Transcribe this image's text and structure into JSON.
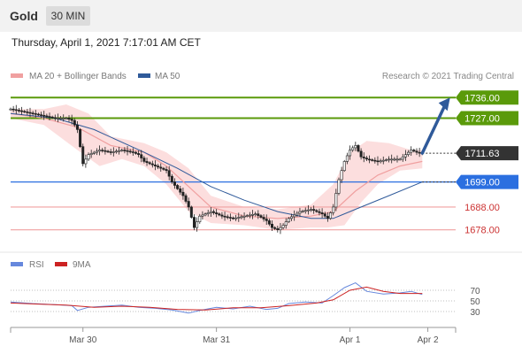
{
  "header": {
    "instrument": "Gold",
    "timeframe": "30 MIN",
    "datetime": "Thursday, April 1, 2021 7:17:01 AM CET"
  },
  "legend": {
    "ma20": "MA 20 + Bollinger Bands",
    "ma50": "MA 50",
    "credit": "Research © 2021 Trading Central",
    "rsi": "RSI",
    "ma9": "9MA"
  },
  "colors": {
    "resistance": "#5a9a0a",
    "support_blue": "#2b6fe0",
    "support_red": "#f0a0a0",
    "price_tag": "#333333",
    "ma20": "#f0a0a0",
    "ma50": "#2f5a9a",
    "band": "#fbd8d8",
    "arrow": "#2f5a9a",
    "rsi": "#6688dd",
    "rsi_ma": "#cc2222"
  },
  "chart_data": [
    {
      "type": "candlestick",
      "title": "Gold",
      "x_tick_labels": [
        "Mar 30",
        "Mar 31",
        "Apr 1",
        "Apr 2"
      ],
      "levels": [
        {
          "value": 1736.0,
          "label": "1736.00",
          "kind": "resistance"
        },
        {
          "value": 1727.0,
          "label": "1727.00",
          "kind": "resistance"
        },
        {
          "value": 1711.63,
          "label": "1711.63",
          "kind": "last-price"
        },
        {
          "value": 1699.0,
          "label": "1699.00",
          "kind": "pivot"
        },
        {
          "value": 1688.0,
          "label": "1688.00",
          "kind": "support"
        },
        {
          "value": 1678.0,
          "label": "1678.00",
          "kind": "support"
        }
      ],
      "price_path": [
        {
          "x": 0,
          "y": 1731
        },
        {
          "x": 4,
          "y": 1730
        },
        {
          "x": 8,
          "y": 1729
        },
        {
          "x": 12,
          "y": 1728
        },
        {
          "x": 16,
          "y": 1727
        },
        {
          "x": 20,
          "y": 1727
        },
        {
          "x": 22,
          "y": 1726
        },
        {
          "x": 24,
          "y": 1722
        },
        {
          "x": 26,
          "y": 1707
        },
        {
          "x": 28,
          "y": 1711
        },
        {
          "x": 32,
          "y": 1713
        },
        {
          "x": 36,
          "y": 1712
        },
        {
          "x": 40,
          "y": 1713
        },
        {
          "x": 44,
          "y": 1712
        },
        {
          "x": 46,
          "y": 1711
        },
        {
          "x": 48,
          "y": 1708
        },
        {
          "x": 52,
          "y": 1706
        },
        {
          "x": 56,
          "y": 1704
        },
        {
          "x": 58,
          "y": 1699
        },
        {
          "x": 62,
          "y": 1693
        },
        {
          "x": 64,
          "y": 1688
        },
        {
          "x": 66,
          "y": 1679
        },
        {
          "x": 68,
          "y": 1684
        },
        {
          "x": 72,
          "y": 1686
        },
        {
          "x": 76,
          "y": 1684
        },
        {
          "x": 80,
          "y": 1683
        },
        {
          "x": 84,
          "y": 1684
        },
        {
          "x": 88,
          "y": 1685
        },
        {
          "x": 92,
          "y": 1682
        },
        {
          "x": 94,
          "y": 1679
        },
        {
          "x": 96,
          "y": 1678
        },
        {
          "x": 98,
          "y": 1680
        },
        {
          "x": 100,
          "y": 1683
        },
        {
          "x": 104,
          "y": 1686
        },
        {
          "x": 108,
          "y": 1687
        },
        {
          "x": 112,
          "y": 1685
        },
        {
          "x": 114,
          "y": 1683
        },
        {
          "x": 116,
          "y": 1688
        },
        {
          "x": 118,
          "y": 1700
        },
        {
          "x": 120,
          "y": 1708
        },
        {
          "x": 122,
          "y": 1713
        },
        {
          "x": 124,
          "y": 1715
        },
        {
          "x": 126,
          "y": 1710
        },
        {
          "x": 128,
          "y": 1709
        },
        {
          "x": 132,
          "y": 1708
        },
        {
          "x": 136,
          "y": 1709
        },
        {
          "x": 140,
          "y": 1709
        },
        {
          "x": 142,
          "y": 1711
        },
        {
          "x": 144,
          "y": 1713
        },
        {
          "x": 146,
          "y": 1712
        },
        {
          "x": 148,
          "y": 1711.63
        }
      ],
      "ma20_path": [
        {
          "x": 0,
          "y": 1729
        },
        {
          "x": 12,
          "y": 1727
        },
        {
          "x": 24,
          "y": 1723
        },
        {
          "x": 36,
          "y": 1715
        },
        {
          "x": 48,
          "y": 1712
        },
        {
          "x": 56,
          "y": 1706
        },
        {
          "x": 64,
          "y": 1697
        },
        {
          "x": 72,
          "y": 1688
        },
        {
          "x": 84,
          "y": 1684
        },
        {
          "x": 96,
          "y": 1683
        },
        {
          "x": 108,
          "y": 1684
        },
        {
          "x": 116,
          "y": 1686
        },
        {
          "x": 124,
          "y": 1695
        },
        {
          "x": 132,
          "y": 1702
        },
        {
          "x": 140,
          "y": 1706
        },
        {
          "x": 148,
          "y": 1708
        }
      ],
      "ma50_path": [
        {
          "x": 0,
          "y": 1729
        },
        {
          "x": 16,
          "y": 1727
        },
        {
          "x": 30,
          "y": 1722
        },
        {
          "x": 48,
          "y": 1712
        },
        {
          "x": 60,
          "y": 1705
        },
        {
          "x": 72,
          "y": 1697
        },
        {
          "x": 84,
          "y": 1691
        },
        {
          "x": 96,
          "y": 1686
        },
        {
          "x": 108,
          "y": 1683
        },
        {
          "x": 116,
          "y": 1683
        },
        {
          "x": 124,
          "y": 1687
        },
        {
          "x": 136,
          "y": 1693
        },
        {
          "x": 148,
          "y": 1699
        }
      ],
      "bollinger_upper": [
        {
          "x": 0,
          "y": 1731
        },
        {
          "x": 12,
          "y": 1731
        },
        {
          "x": 20,
          "y": 1733
        },
        {
          "x": 28,
          "y": 1729
        },
        {
          "x": 36,
          "y": 1719
        },
        {
          "x": 48,
          "y": 1716
        },
        {
          "x": 56,
          "y": 1712
        },
        {
          "x": 64,
          "y": 1705
        },
        {
          "x": 72,
          "y": 1693
        },
        {
          "x": 84,
          "y": 1688
        },
        {
          "x": 96,
          "y": 1687
        },
        {
          "x": 108,
          "y": 1689
        },
        {
          "x": 116,
          "y": 1698
        },
        {
          "x": 122,
          "y": 1712
        },
        {
          "x": 128,
          "y": 1717
        },
        {
          "x": 136,
          "y": 1716
        },
        {
          "x": 144,
          "y": 1713
        },
        {
          "x": 148,
          "y": 1713
        }
      ],
      "bollinger_lower": [
        {
          "x": 0,
          "y": 1727
        },
        {
          "x": 12,
          "y": 1724
        },
        {
          "x": 24,
          "y": 1713
        },
        {
          "x": 32,
          "y": 1706
        },
        {
          "x": 40,
          "y": 1709
        },
        {
          "x": 48,
          "y": 1706
        },
        {
          "x": 56,
          "y": 1698
        },
        {
          "x": 64,
          "y": 1686
        },
        {
          "x": 72,
          "y": 1681
        },
        {
          "x": 84,
          "y": 1680
        },
        {
          "x": 96,
          "y": 1678
        },
        {
          "x": 108,
          "y": 1679
        },
        {
          "x": 114,
          "y": 1679
        },
        {
          "x": 120,
          "y": 1680
        },
        {
          "x": 126,
          "y": 1690
        },
        {
          "x": 132,
          "y": 1698
        },
        {
          "x": 140,
          "y": 1704
        },
        {
          "x": 148,
          "y": 1705
        }
      ],
      "projection": [
        {
          "x": 148,
          "y": 1711.63
        },
        {
          "x": 158,
          "y": 1736
        }
      ],
      "ylim": [
        1674,
        1740
      ],
      "xlim": [
        0,
        160
      ],
      "x_ticks": [
        {
          "x": 26,
          "label": "Mar 30"
        },
        {
          "x": 74,
          "label": "Mar 31"
        },
        {
          "x": 122,
          "label": "Apr 1"
        },
        {
          "x": 150,
          "label": "Apr 2"
        }
      ]
    },
    {
      "type": "line",
      "title": "RSI",
      "ylim": [
        0,
        100
      ],
      "y_ticks": [
        70,
        50,
        30
      ],
      "series": [
        {
          "name": "RSI",
          "values": [
            {
              "x": 0,
              "y": 48
            },
            {
              "x": 8,
              "y": 45
            },
            {
              "x": 16,
              "y": 43
            },
            {
              "x": 22,
              "y": 41
            },
            {
              "x": 24,
              "y": 32
            },
            {
              "x": 28,
              "y": 38
            },
            {
              "x": 34,
              "y": 40
            },
            {
              "x": 40,
              "y": 42
            },
            {
              "x": 46,
              "y": 38
            },
            {
              "x": 52,
              "y": 36
            },
            {
              "x": 58,
              "y": 33
            },
            {
              "x": 64,
              "y": 27
            },
            {
              "x": 68,
              "y": 32
            },
            {
              "x": 74,
              "y": 38
            },
            {
              "x": 80,
              "y": 35
            },
            {
              "x": 86,
              "y": 40
            },
            {
              "x": 92,
              "y": 34
            },
            {
              "x": 96,
              "y": 36
            },
            {
              "x": 100,
              "y": 45
            },
            {
              "x": 106,
              "y": 48
            },
            {
              "x": 112,
              "y": 46
            },
            {
              "x": 116,
              "y": 60
            },
            {
              "x": 120,
              "y": 75
            },
            {
              "x": 124,
              "y": 84
            },
            {
              "x": 128,
              "y": 68
            },
            {
              "x": 134,
              "y": 63
            },
            {
              "x": 140,
              "y": 65
            },
            {
              "x": 144,
              "y": 68
            },
            {
              "x": 148,
              "y": 62
            }
          ]
        },
        {
          "name": "9MA",
          "values": [
            {
              "x": 0,
              "y": 46
            },
            {
              "x": 10,
              "y": 44
            },
            {
              "x": 20,
              "y": 42
            },
            {
              "x": 30,
              "y": 38
            },
            {
              "x": 40,
              "y": 40
            },
            {
              "x": 50,
              "y": 38
            },
            {
              "x": 60,
              "y": 34
            },
            {
              "x": 70,
              "y": 33
            },
            {
              "x": 80,
              "y": 37
            },
            {
              "x": 90,
              "y": 37
            },
            {
              "x": 100,
              "y": 41
            },
            {
              "x": 110,
              "y": 46
            },
            {
              "x": 116,
              "y": 52
            },
            {
              "x": 122,
              "y": 70
            },
            {
              "x": 128,
              "y": 76
            },
            {
              "x": 134,
              "y": 68
            },
            {
              "x": 140,
              "y": 64
            },
            {
              "x": 148,
              "y": 64
            }
          ]
        }
      ]
    }
  ]
}
